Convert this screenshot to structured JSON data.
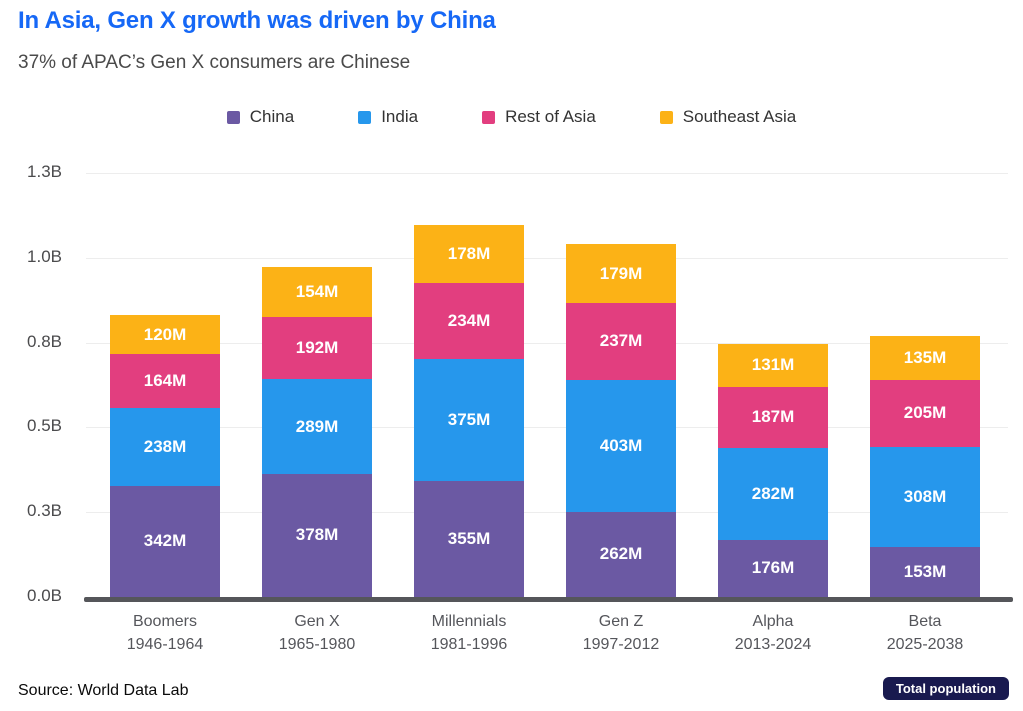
{
  "header": {
    "title": "In Asia, Gen X growth was driven by China",
    "subtitle": "37% of APAC’s Gen X consumers are Chinese"
  },
  "legend": [
    {
      "label": "China",
      "color": "#6b59a3"
    },
    {
      "label": "India",
      "color": "#2697ec"
    },
    {
      "label": "Rest of Asia",
      "color": "#e23e7f"
    },
    {
      "label": "Southeast Asia",
      "color": "#fcb216"
    }
  ],
  "chart_data": {
    "type": "bar",
    "stacked": true,
    "title": "In Asia, Gen X growth was driven by China",
    "subtitle": "37% of APAC’s Gen X consumers are Chinese",
    "unit": "M",
    "categories": [
      "Boomers",
      "Gen X",
      "Millennials",
      "Gen Z",
      "Alpha",
      "Beta"
    ],
    "category_years": [
      "1946-1964",
      "1965-1980",
      "1981-1996",
      "1997-2012",
      "2013-2024",
      "2025-2038"
    ],
    "series": [
      {
        "name": "China",
        "color": "#6b59a3",
        "values": [
          342,
          378,
          355,
          262,
          176,
          153
        ]
      },
      {
        "name": "India",
        "color": "#2697ec",
        "values": [
          238,
          289,
          375,
          403,
          282,
          308
        ]
      },
      {
        "name": "Rest of Asia",
        "color": "#e23e7f",
        "values": [
          164,
          192,
          234,
          237,
          187,
          205
        ]
      },
      {
        "name": "Southeast Asia",
        "color": "#fcb216",
        "values": [
          120,
          154,
          178,
          179,
          131,
          135
        ]
      }
    ],
    "ylim": [
      0,
      1300
    ],
    "yticks": [
      {
        "value": 0,
        "label": "0.0B"
      },
      {
        "value": 260,
        "label": "0.3B"
      },
      {
        "value": 520,
        "label": "0.5B"
      },
      {
        "value": 780,
        "label": "0.8B"
      },
      {
        "value": 1040,
        "label": "1.0B"
      },
      {
        "value": 1300,
        "label": "1.3B"
      }
    ],
    "grid": true,
    "legend_position": "top"
  },
  "footer": {
    "source": "Source: World Data Lab",
    "badge": "Total population",
    "badge_color": "#191a4f"
  }
}
